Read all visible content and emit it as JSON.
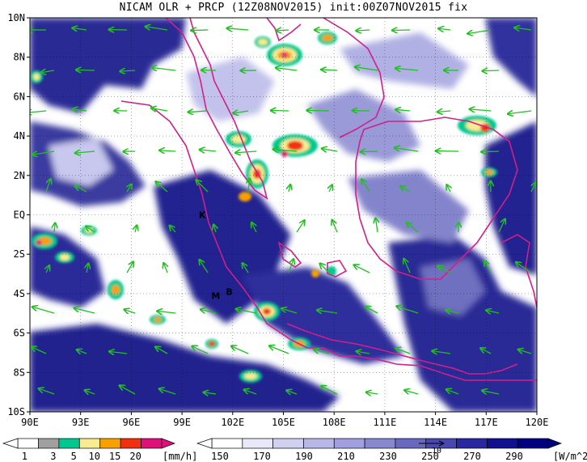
{
  "title": "NICAM OLR + PRCP (12Z08NOV2015) init:00Z07NOV2015 fix",
  "lat_labels": [
    "10N",
    "8N",
    "6N",
    "4N",
    "2N",
    "EQ",
    "2S",
    "4S",
    "6S",
    "8S",
    "10S"
  ],
  "lon_labels": [
    "90E",
    "93E",
    "96E",
    "99E",
    "102E",
    "105E",
    "108E",
    "111E",
    "114E",
    "117E",
    "120E"
  ],
  "station_markers": [
    {
      "label": "K",
      "lon": 100.2,
      "lat": 0.0
    },
    {
      "label": "M",
      "lon": 101.0,
      "lat": -4.1
    },
    {
      "label": "B",
      "lon": 101.8,
      "lat": -3.9
    }
  ],
  "precip_colorbar": {
    "values": [
      "1",
      "3",
      "5",
      "10",
      "15",
      "20"
    ],
    "unit": "[mm/h]",
    "colors": [
      "#ffffff",
      "#a0a0a0",
      "#00c890",
      "#f8ec90",
      "#f8a000",
      "#f03010",
      "#e0107a"
    ]
  },
  "olr_colorbar": {
    "values": [
      "150",
      "170",
      "190",
      "210",
      "230",
      "250",
      "270",
      "290"
    ],
    "unit": "[W/m^2]",
    "colors": [
      "#ffffff",
      "#e8e8f8",
      "#d0d0f0",
      "#b8b8e8",
      "#a0a0e0",
      "#8888d0",
      "#6868c0",
      "#4848b0",
      "#2828a0",
      "#101090",
      "#000080"
    ]
  },
  "wind_reference": {
    "label": "10"
  },
  "colors": {
    "coast": "#d0208a",
    "wind": "#20c020",
    "olr_dark": "#20208a"
  }
}
